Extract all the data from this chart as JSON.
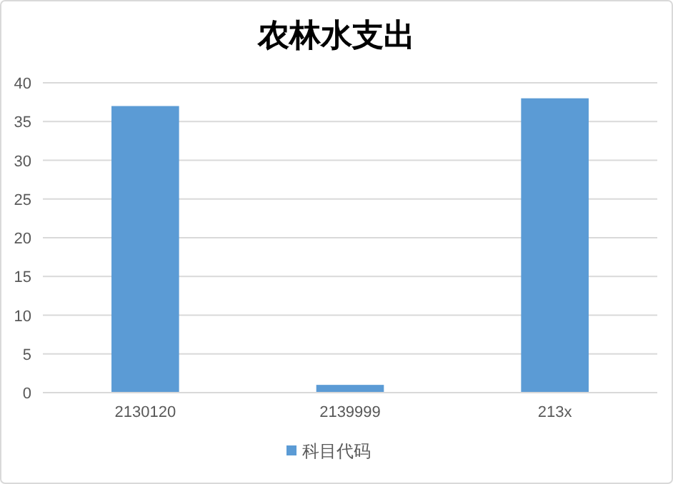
{
  "chart_data": {
    "type": "bar",
    "title": "农林水支出",
    "categories": [
      "2130120",
      "2139999",
      "213x"
    ],
    "series": [
      {
        "name": "科目代码",
        "color": "#5b9bd5",
        "values": [
          37,
          1,
          38
        ]
      }
    ],
    "ylim": [
      0,
      40
    ],
    "yticks": [
      0,
      5,
      10,
      15,
      20,
      25,
      30,
      35,
      40
    ],
    "grid": "y",
    "legend": "bottom"
  }
}
